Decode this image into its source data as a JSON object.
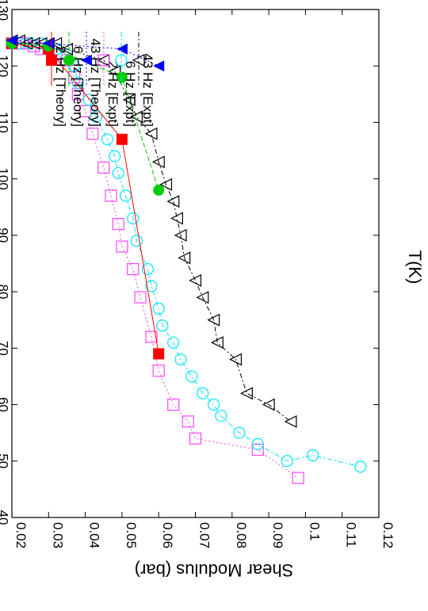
{
  "chart_data": {
    "type": "line",
    "orientation": "rotated-90-clockwise",
    "title": "",
    "xlabel": "T(K)",
    "ylabel": "Shear Modulus (bar)",
    "xlim": [
      0.02,
      0.12
    ],
    "ylim": [
      40,
      130
    ],
    "xticks": [
      "0.02",
      "0.03",
      "0.04",
      "0.05",
      "0.06",
      "0.07",
      "0.08",
      "0.09",
      "0.1",
      "0.11",
      "0.12"
    ],
    "yticks": [
      "40",
      "50",
      "60",
      "70",
      "80",
      "90",
      "100",
      "110",
      "120",
      "130"
    ],
    "grid": false,
    "legend_position": "top-right",
    "series": [
      {
        "name": "2 Hz [Theory]",
        "color": "#ff0000",
        "marker": "filled-square",
        "line": "solid",
        "x": [
          0.02,
          0.03,
          0.05,
          0.06
        ],
        "y": [
          124,
          123,
          107,
          69
        ]
      },
      {
        "name": "6 Hz [Theory]",
        "color": "#00cc00",
        "marker": "filled-circle",
        "line": "dashed",
        "x": [
          0.02,
          0.03,
          0.05,
          0.06
        ],
        "y": [
          124,
          123.5,
          118,
          98
        ]
      },
      {
        "name": "43 Hz [Theory]",
        "color": "#0000ff",
        "marker": "filled-triangle",
        "line": "dotted",
        "x": [
          0.02,
          0.03,
          0.05,
          0.06
        ],
        "y": [
          124.5,
          124,
          123,
          120
        ]
      },
      {
        "name": "2 Hz [Expt]",
        "color": "#ff44ff",
        "marker": "open-square",
        "line": "dotted",
        "x": [
          0.02,
          0.022,
          0.024,
          0.026,
          0.028,
          0.03,
          0.032,
          0.035,
          0.037,
          0.038,
          0.04,
          0.042,
          0.045,
          0.047,
          0.049,
          0.05,
          0.053,
          0.055,
          0.058,
          0.06,
          0.064,
          0.068,
          0.07,
          0.087,
          0.098
        ],
        "y": [
          124,
          124,
          124,
          123.5,
          123,
          123,
          122,
          121,
          118,
          115,
          112,
          108,
          102,
          97,
          92,
          88,
          84,
          79,
          72,
          66,
          60,
          57,
          54,
          52,
          47
        ]
      },
      {
        "name": "6 Hz [Expt]",
        "color": "#00e5ff",
        "marker": "open-circle",
        "line": "dash-dot",
        "x": [
          0.02,
          0.022,
          0.025,
          0.028,
          0.03,
          0.032,
          0.035,
          0.037,
          0.038,
          0.041,
          0.043,
          0.046,
          0.048,
          0.049,
          0.051,
          0.053,
          0.054,
          0.057,
          0.058,
          0.06,
          0.061,
          0.064,
          0.066,
          0.069,
          0.072,
          0.075,
          0.077,
          0.082,
          0.087,
          0.095,
          0.102,
          0.115
        ],
        "y": [
          124,
          124,
          124,
          124,
          123.5,
          123,
          122,
          120,
          117,
          114,
          111,
          107,
          104,
          101,
          97,
          93,
          89,
          84,
          81,
          77,
          74,
          71,
          68,
          65,
          62,
          60,
          58,
          55,
          53,
          50,
          51,
          49
        ]
      },
      {
        "name": "43 Hz [Expt]",
        "color": "#000000",
        "marker": "open-triangle",
        "line": "dash-dot",
        "x": [
          0.02,
          0.022,
          0.024,
          0.026,
          0.028,
          0.03,
          0.032,
          0.035,
          0.045,
          0.048,
          0.052,
          0.054,
          0.058,
          0.06,
          0.062,
          0.064,
          0.065,
          0.066,
          0.067,
          0.07,
          0.072,
          0.075,
          0.076,
          0.081,
          0.084,
          0.09,
          0.096
        ],
        "y": [
          124.5,
          124.5,
          124,
          124,
          124,
          124,
          124,
          123,
          121,
          119,
          114,
          111,
          108,
          103,
          99,
          96,
          93,
          90,
          86,
          82,
          79,
          75,
          71,
          68,
          62,
          60,
          57
        ]
      }
    ]
  }
}
